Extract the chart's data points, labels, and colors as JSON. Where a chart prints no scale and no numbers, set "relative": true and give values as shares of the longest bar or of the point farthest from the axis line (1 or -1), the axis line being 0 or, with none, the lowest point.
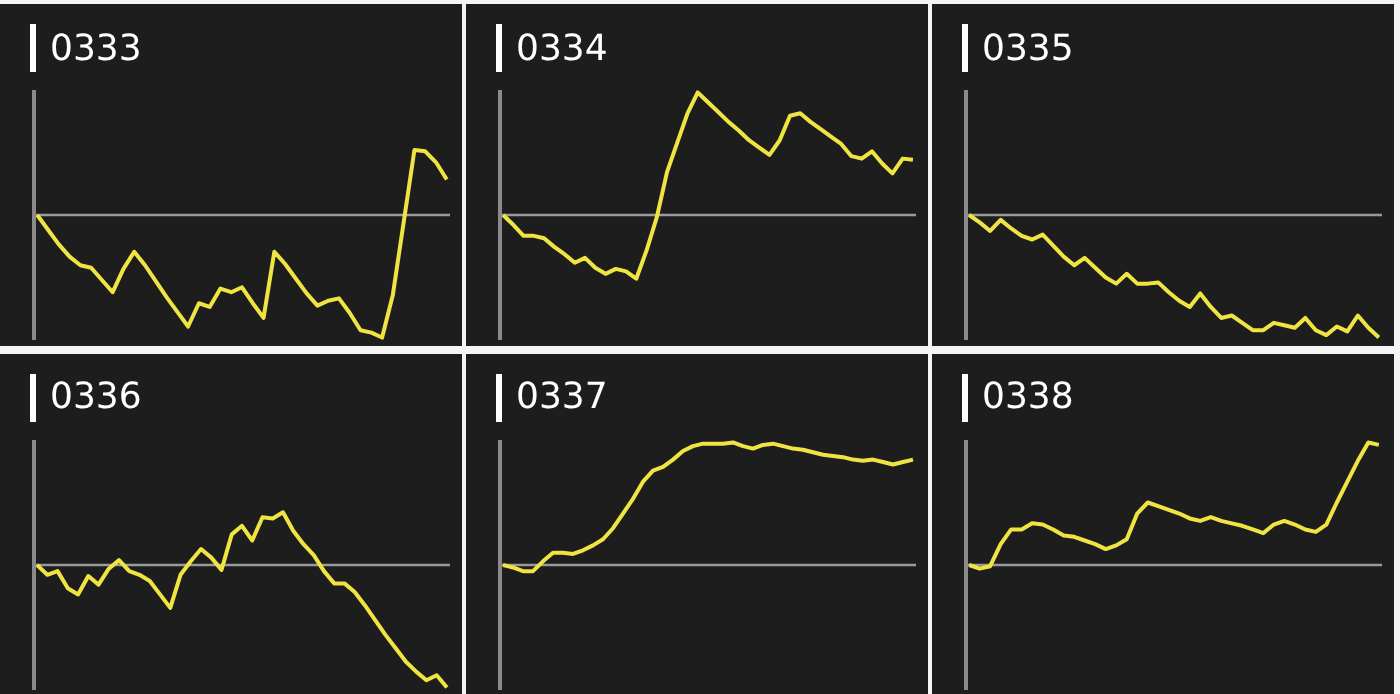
{
  "chart_data": [
    {
      "type": "line",
      "title": "0333",
      "relative": true,
      "tick_labels": false,
      "categories": [
        null,
        null,
        null,
        null,
        null,
        null,
        null,
        null,
        null,
        null,
        null,
        null,
        null,
        null,
        null,
        null,
        null,
        null,
        null,
        null,
        null,
        null,
        null,
        null,
        null,
        null,
        null,
        null,
        null,
        null,
        null,
        null,
        null,
        null,
        null,
        null,
        null,
        null,
        null
      ],
      "series": [
        {
          "color": "#f0e442",
          "values": [
            0,
            -0.12,
            -0.24,
            -0.34,
            -0.41,
            -0.43,
            -0.53,
            -0.63,
            -0.44,
            -0.3,
            -0.41,
            -0.54,
            -0.67,
            -0.79,
            -0.91,
            -0.72,
            -0.75,
            -0.6,
            -0.63,
            -0.59,
            -0.72,
            -0.84,
            -0.3,
            -0.4,
            -0.52,
            -0.64,
            -0.74,
            -0.7,
            -0.68,
            -0.8,
            -0.94,
            -0.96,
            -1,
            -0.65,
            -0.06,
            0.53,
            0.52,
            0.43,
            0.29
          ]
        }
      ]
    },
    {
      "type": "line",
      "title": "0334",
      "relative": true,
      "tick_labels": false,
      "categories": [
        null,
        null,
        null,
        null,
        null,
        null,
        null,
        null,
        null,
        null,
        null,
        null,
        null,
        null,
        null,
        null,
        null,
        null,
        null,
        null,
        null,
        null,
        null,
        null,
        null,
        null,
        null,
        null,
        null,
        null,
        null,
        null,
        null,
        null,
        null,
        null,
        null,
        null,
        null,
        null,
        null
      ],
      "series": [
        {
          "color": "#f0e442",
          "values": [
            0,
            -0.08,
            -0.17,
            -0.17,
            -0.19,
            -0.26,
            -0.32,
            -0.39,
            -0.35,
            -0.43,
            -0.48,
            -0.44,
            -0.46,
            -0.52,
            -0.29,
            -0.02,
            0.35,
            0.59,
            0.83,
            1,
            0.92,
            0.84,
            0.76,
            0.69,
            0.61,
            0.55,
            0.49,
            0.61,
            0.81,
            0.83,
            0.76,
            0.7,
            0.64,
            0.58,
            0.48,
            0.46,
            0.52,
            0.42,
            0.34,
            0.46,
            0.45
          ]
        }
      ]
    },
    {
      "type": "line",
      "title": "0335",
      "relative": true,
      "tick_labels": false,
      "categories": [
        null,
        null,
        null,
        null,
        null,
        null,
        null,
        null,
        null,
        null,
        null,
        null,
        null,
        null,
        null,
        null,
        null,
        null,
        null,
        null,
        null,
        null,
        null,
        null,
        null,
        null,
        null,
        null,
        null,
        null,
        null,
        null,
        null,
        null,
        null,
        null,
        null,
        null,
        null,
        null
      ],
      "series": [
        {
          "color": "#f0e442",
          "values": [
            0,
            -0.06,
            -0.13,
            -0.04,
            -0.11,
            -0.17,
            -0.2,
            -0.16,
            -0.25,
            -0.34,
            -0.41,
            -0.35,
            -0.43,
            -0.51,
            -0.56,
            -0.48,
            -0.56,
            -0.56,
            -0.55,
            -0.63,
            -0.7,
            -0.75,
            -0.64,
            -0.75,
            -0.84,
            -0.82,
            -0.88,
            -0.94,
            -0.94,
            -0.88,
            -0.9,
            -0.92,
            -0.84,
            -0.94,
            -0.98,
            -0.91,
            -0.95,
            -0.82,
            -0.92,
            -1
          ]
        }
      ]
    },
    {
      "type": "line",
      "title": "0336",
      "relative": true,
      "tick_labels": false,
      "categories": [
        null,
        null,
        null,
        null,
        null,
        null,
        null,
        null,
        null,
        null,
        null,
        null,
        null,
        null,
        null,
        null,
        null,
        null,
        null,
        null,
        null,
        null,
        null,
        null,
        null,
        null,
        null,
        null,
        null,
        null,
        null,
        null,
        null,
        null,
        null,
        null,
        null,
        null,
        null,
        null,
        null
      ],
      "series": [
        {
          "color": "#f0e442",
          "values": [
            0,
            -0.08,
            -0.05,
            -0.19,
            -0.24,
            -0.09,
            -0.16,
            -0.03,
            0.04,
            -0.05,
            -0.08,
            -0.13,
            -0.24,
            -0.35,
            -0.08,
            0.03,
            0.13,
            0.06,
            -0.04,
            0.25,
            0.32,
            0.2,
            0.39,
            0.38,
            0.43,
            0.28,
            0.17,
            0.08,
            -0.05,
            -0.15,
            -0.15,
            -0.22,
            -0.33,
            -0.45,
            -0.57,
            -0.68,
            -0.79,
            -0.87,
            -0.94,
            -0.9,
            -1
          ]
        }
      ]
    },
    {
      "type": "line",
      "title": "0337",
      "relative": true,
      "tick_labels": false,
      "categories": [
        null,
        null,
        null,
        null,
        null,
        null,
        null,
        null,
        null,
        null,
        null,
        null,
        null,
        null,
        null,
        null,
        null,
        null,
        null,
        null,
        null,
        null,
        null,
        null,
        null,
        null,
        null,
        null,
        null,
        null,
        null,
        null,
        null,
        null,
        null,
        null,
        null,
        null,
        null,
        null,
        null,
        null
      ],
      "series": [
        {
          "color": "#f0e442",
          "values": [
            0,
            -0.02,
            -0.05,
            -0.05,
            0.03,
            0.1,
            0.1,
            0.09,
            0.12,
            0.16,
            0.21,
            0.3,
            0.42,
            0.54,
            0.68,
            0.77,
            0.8,
            0.86,
            0.93,
            0.97,
            0.99,
            0.99,
            0.99,
            1,
            0.97,
            0.95,
            0.98,
            0.99,
            0.97,
            0.95,
            0.94,
            0.92,
            0.9,
            0.89,
            0.88,
            0.86,
            0.85,
            0.86,
            0.84,
            0.82,
            0.84,
            0.86
          ]
        }
      ]
    },
    {
      "type": "line",
      "title": "0338",
      "relative": true,
      "tick_labels": false,
      "categories": [
        null,
        null,
        null,
        null,
        null,
        null,
        null,
        null,
        null,
        null,
        null,
        null,
        null,
        null,
        null,
        null,
        null,
        null,
        null,
        null,
        null,
        null,
        null,
        null,
        null,
        null,
        null,
        null,
        null,
        null,
        null,
        null,
        null,
        null,
        null,
        null,
        null,
        null,
        null,
        null
      ],
      "series": [
        {
          "color": "#f0e442",
          "values": [
            0,
            -0.03,
            -0.01,
            0.17,
            0.29,
            0.29,
            0.34,
            0.33,
            0.29,
            0.24,
            0.23,
            0.2,
            0.17,
            0.13,
            0.16,
            0.21,
            0.42,
            0.51,
            0.48,
            0.45,
            0.42,
            0.38,
            0.36,
            0.39,
            0.36,
            0.34,
            0.32,
            0.29,
            0.26,
            0.33,
            0.36,
            0.33,
            0.29,
            0.27,
            0.33,
            0.51,
            0.68,
            0.85,
            1,
            0.98
          ]
        }
      ]
    }
  ]
}
